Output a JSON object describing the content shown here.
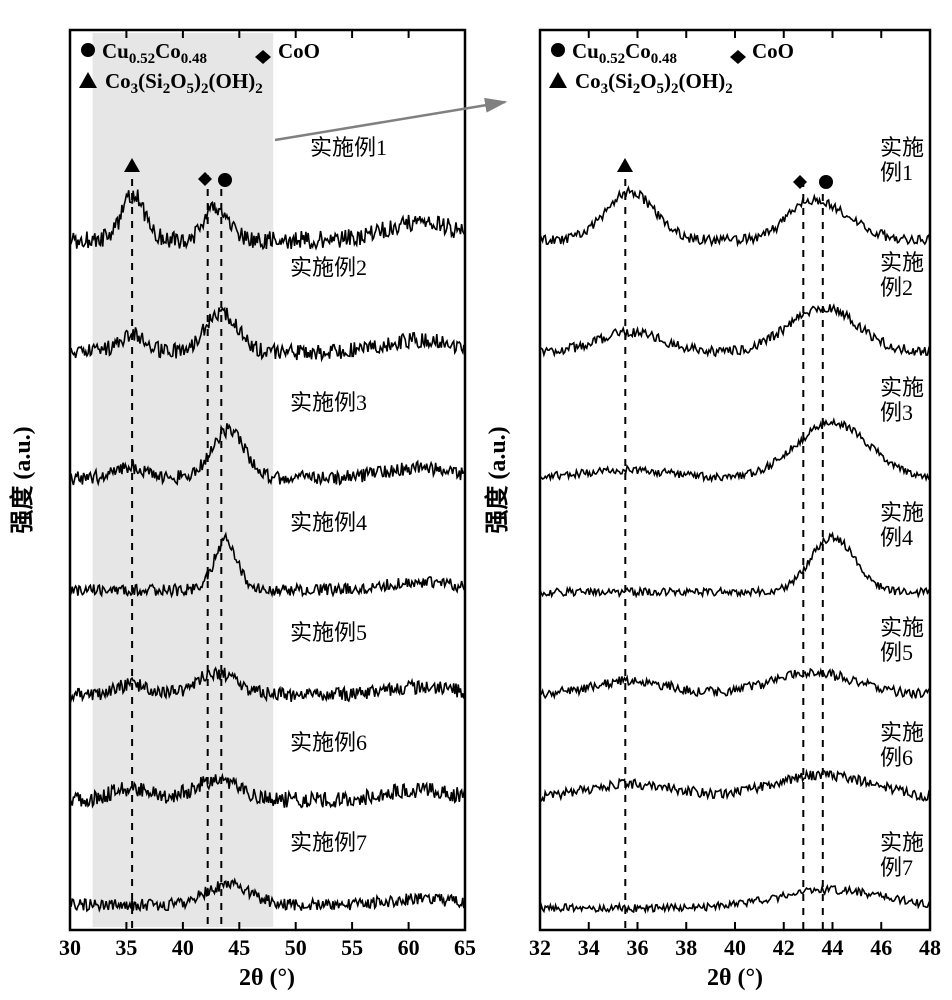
{
  "figure": {
    "type": "xrd-diffraction-stack",
    "background_color": "#ffffff",
    "left_panel": {
      "xlim": [
        30,
        65
      ],
      "xtick_step": 5,
      "xticks": [
        30,
        35,
        40,
        45,
        50,
        55,
        60,
        65
      ],
      "xlabel": "2θ (°)",
      "ylabel": "强度 (a.u.)",
      "label_fontsize": 22,
      "tick_fontsize": 20,
      "shaded_region": {
        "xmin": 32,
        "xmax": 48,
        "color": "#e6e6e6"
      },
      "vertical_lines": [
        35.5,
        42.2,
        43.4
      ],
      "vertical_line_style": "dashed",
      "series_labels": [
        "实施例1",
        "实施例2",
        "实施例3",
        "实施例4",
        "实施例5",
        "实施例6",
        "实施例7"
      ],
      "series_color": "#000000",
      "line_width": 1.5,
      "markers": [
        {
          "symbol": "triangle",
          "x": 35.5,
          "label": "Co3(Si2O5)2(OH)2"
        },
        {
          "symbol": "diamond",
          "x": 42.2,
          "label": "CoO"
        },
        {
          "symbol": "circle",
          "x": 43.4,
          "label": "Cu0.52Co0.48"
        }
      ]
    },
    "right_panel": {
      "xlim": [
        32,
        48
      ],
      "xtick_step": 2,
      "xticks": [
        32,
        34,
        36,
        38,
        40,
        42,
        44,
        46,
        48
      ],
      "xlabel": "2θ (°)",
      "ylabel": "强度 (a.u.)",
      "label_fontsize": 22,
      "tick_fontsize": 20,
      "vertical_lines": [
        35.5,
        42.8,
        43.6
      ],
      "vertical_line_style": "dashed",
      "series_labels": [
        "实施例1",
        "实施例2",
        "实施例3",
        "实施例4",
        "实施例5",
        "实施例6",
        "实施例7"
      ],
      "series_color": "#000000",
      "line_width": 1.5
    },
    "legend": {
      "circle_label": "Cu",
      "circle_sub": "0.52",
      "circle_label2": "Co",
      "circle_sub2": "0.48",
      "diamond_label": "CoO",
      "triangle_label": "Co",
      "triangle_sub1": "3",
      "triangle_label2": "(Si",
      "triangle_sub2": "2",
      "triangle_label3": "O",
      "triangle_sub3": "5",
      "triangle_label4": ")",
      "triangle_sub4": "2",
      "triangle_label5": "(OH)",
      "triangle_sub5": "2"
    },
    "arrow": {
      "color": "#808080",
      "width": 2
    }
  }
}
